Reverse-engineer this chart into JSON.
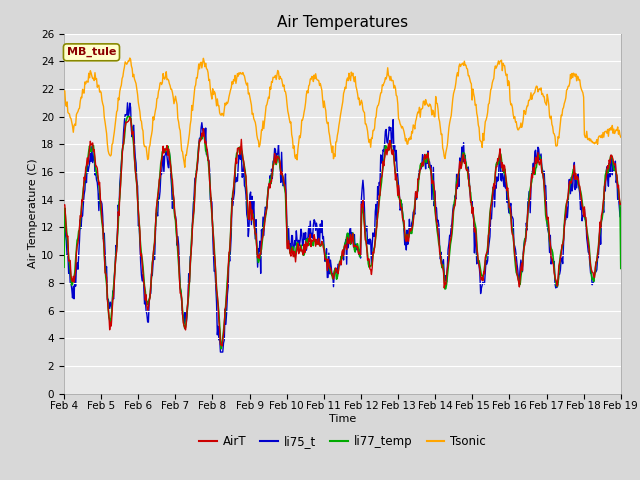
{
  "title": "Air Temperatures",
  "xlabel": "Time",
  "ylabel": "Air Temperature (C)",
  "ylim": [
    0,
    26
  ],
  "yticks": [
    0,
    2,
    4,
    6,
    8,
    10,
    12,
    14,
    16,
    18,
    20,
    22,
    24,
    26
  ],
  "xlabels": [
    "Feb 4",
    "Feb 5",
    "Feb 6",
    "Feb 7",
    "Feb 8",
    "Feb 9",
    "Feb 10",
    "Feb 11",
    "Feb 12",
    "Feb 13",
    "Feb 14",
    "Feb 15",
    "Feb 16",
    "Feb 17",
    "Feb 18",
    "Feb 19"
  ],
  "annotation_text": "MB_tule",
  "annotation_color": "#8B0000",
  "annotation_bg": "#FFFFCC",
  "line_colors": {
    "AirT": "#CC0000",
    "li75_t": "#0000CC",
    "li77_temp": "#00AA00",
    "Tsonic": "#FFA500"
  },
  "legend_labels": [
    "AirT",
    "li75_t",
    "li77_temp",
    "Tsonic"
  ],
  "bg_color": "#D8D8D8",
  "plot_bg": "#E8E8E8",
  "grid_color": "#FFFFFF",
  "title_fontsize": 11,
  "axis_fontsize": 8,
  "tick_fontsize": 7.5
}
